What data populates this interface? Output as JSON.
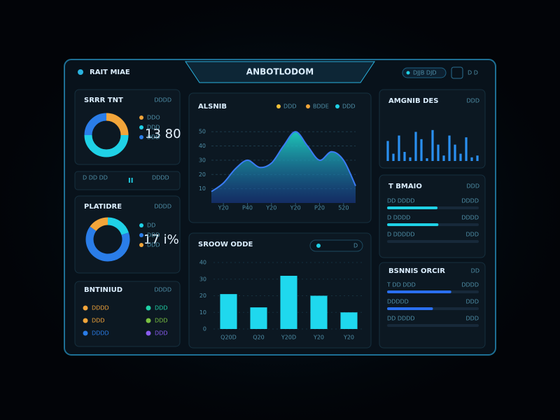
{
  "header": {
    "brand": "RAIT MIAE",
    "title": "ANBOTLODOM",
    "status": "DJJB DJD",
    "user": "D D"
  },
  "donut1": {
    "title": "SRRR TNT",
    "tag": "DDDD",
    "center": "13 80",
    "segments": [
      {
        "name": "DDO",
        "color": "#f2a53a",
        "value": 25
      },
      {
        "name": "DDD",
        "color": "#1fd1e6",
        "value": 50
      },
      {
        "name": "DDD",
        "color": "#2a7de8",
        "value": 25
      }
    ]
  },
  "stats": [
    "D DD DD",
    "II",
    "DDDD"
  ],
  "donut2": {
    "title": "PLATIDRE",
    "tag": "DDDD",
    "center": "17 i%",
    "segments": [
      {
        "name": "DD",
        "color": "#1fd1e6",
        "value": 20
      },
      {
        "name": "DDD",
        "color": "#2a7de8",
        "value": 65
      },
      {
        "name": "DDD",
        "color": "#f2a53a",
        "value": 15
      }
    ]
  },
  "list": {
    "title": "BNTINIUD",
    "tag": "DDDD",
    "items": [
      {
        "name": "DDDD",
        "color": "#f2a53a"
      },
      {
        "name": "DDD",
        "color": "#1fd1a6"
      },
      {
        "name": "DDD",
        "color": "#f2a53a"
      },
      {
        "name": "DDD",
        "color": "#7ac142"
      },
      {
        "name": "DDDD",
        "color": "#2a7de8"
      },
      {
        "name": "DDD",
        "color": "#8a5cf0"
      }
    ]
  },
  "area_chart": {
    "type": "area",
    "title": "ALSNIB",
    "legend": [
      {
        "name": "DDD",
        "color": "#f2c23a"
      },
      {
        "name": "BDDE",
        "color": "#f2a53a"
      },
      {
        "name": "DDD",
        "color": "#1fd1e6"
      }
    ],
    "x": [
      0,
      1,
      2,
      3,
      4,
      5,
      6,
      7,
      8,
      9,
      10,
      11,
      12
    ],
    "values": [
      8,
      14,
      24,
      30,
      25,
      28,
      40,
      50,
      40,
      30,
      36,
      30,
      12
    ],
    "xlim": [
      0,
      12
    ],
    "ylim": [
      0,
      55
    ],
    "yticks": [
      10,
      20,
      30,
      40,
      50
    ],
    "xticks": [
      {
        "value": 1,
        "label": "Y20"
      },
      {
        "value": 3,
        "label": "P40"
      },
      {
        "value": 5,
        "label": "Y20"
      },
      {
        "value": 7,
        "label": "Y20"
      },
      {
        "value": 9,
        "label": "P20"
      },
      {
        "value": 11,
        "label": "520"
      }
    ]
  },
  "bar_chart": {
    "type": "bar",
    "title": "SROOW ODDE",
    "legend": [
      {
        "name": "D",
        "color": "#1fd1e6"
      }
    ],
    "categories": [
      "Q20D",
      "Q20",
      "Y20D",
      "Y20",
      "Y20"
    ],
    "values": [
      21,
      13,
      32,
      20,
      10
    ],
    "color": "#1fd8ee",
    "ylim": [
      0,
      40
    ],
    "yticks": [
      0,
      10,
      20,
      30,
      40
    ]
  },
  "mini_bars": {
    "type": "bar",
    "title": "AMGNIB DES",
    "tag": "DDD",
    "color": "#2a90f0",
    "values": [
      22,
      8,
      28,
      10,
      4,
      32,
      24,
      3,
      34,
      18,
      6,
      28,
      18,
      8,
      26,
      4,
      6
    ],
    "ylim": [
      0,
      40
    ]
  },
  "progress1": {
    "title": "T BMAIO",
    "tag": "DDD",
    "rows": [
      {
        "label": "DD DDDD",
        "note": "DDDD",
        "value": 55,
        "color": "#1fd1e6"
      },
      {
        "label": "D DDDD",
        "note": "DDDD",
        "value": 56,
        "color": "#1fd1e6"
      },
      {
        "label": "D DDDDD",
        "note": "DDD",
        "value": 0,
        "color": "#1fd1e6"
      }
    ]
  },
  "progress2": {
    "title": "BSNNIS ORCIR",
    "tag": "DD",
    "rows": [
      {
        "label": "T DD DDD",
        "note": "DDDD",
        "value": 70,
        "color": "#2a6ff0"
      },
      {
        "label": "DDDDD",
        "note": "DDD",
        "value": 50,
        "color": "#2a6ff0"
      },
      {
        "label": "DD DDDD",
        "note": "DDD",
        "value": 0,
        "color": "#e04a3a"
      }
    ]
  }
}
